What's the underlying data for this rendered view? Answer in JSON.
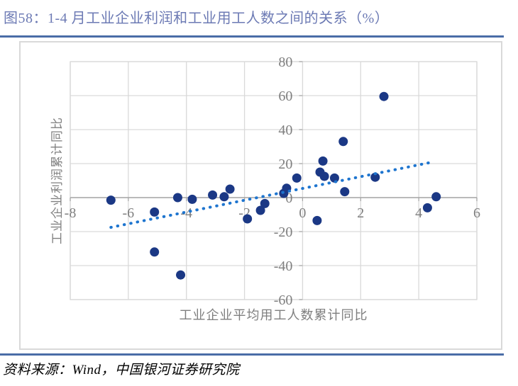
{
  "figure": {
    "title": "图58：1-4 月工业企业利润和工业用工人数之间的关系（%）",
    "source": "资料来源：Wind，中国银河证券研究院"
  },
  "colors": {
    "title_text": "#6c7ab4",
    "rule": "#4a6da7",
    "marker": "#1b3885",
    "trend": "#1e75cf",
    "grid": "#d9d9d9",
    "zero_axis": "#a6a6a6",
    "tick_label": "#7f7f7f",
    "axis_title": "#7f7f7f",
    "frame_border": "#d9d9d9"
  },
  "chart_data": {
    "type": "scatter",
    "title": "",
    "xlabel": "工业企业平均用工人数累计同比",
    "ylabel": "工业企业利润累计同比",
    "xlim": [
      -8,
      6
    ],
    "ylim": [
      -60,
      80
    ],
    "x_ticks": [
      -8,
      -6,
      -4,
      -2,
      0,
      2,
      4,
      6
    ],
    "y_ticks": [
      80,
      60,
      40,
      20,
      0,
      -20,
      -40,
      -60
    ],
    "grid": true,
    "legend_position": "none",
    "points": [
      [
        -6.6,
        -1.5
      ],
      [
        -5.1,
        -8.5
      ],
      [
        -5.1,
        -32
      ],
      [
        -4.3,
        0
      ],
      [
        -4.2,
        -45.5
      ],
      [
        -3.8,
        -1
      ],
      [
        -3.1,
        1.5
      ],
      [
        -2.7,
        0.5
      ],
      [
        -2.5,
        5
      ],
      [
        -1.9,
        -12.5
      ],
      [
        -1.45,
        -7.5
      ],
      [
        -1.3,
        -3.5
      ],
      [
        -0.65,
        2.5
      ],
      [
        -0.55,
        5.5
      ],
      [
        -0.2,
        11.5
      ],
      [
        0.5,
        -13.5
      ],
      [
        0.6,
        15
      ],
      [
        0.7,
        21.5
      ],
      [
        0.75,
        12.5
      ],
      [
        1.1,
        11.5
      ],
      [
        1.4,
        33
      ],
      [
        1.45,
        3.5
      ],
      [
        2.5,
        12
      ],
      [
        2.8,
        59.5
      ],
      [
        4.3,
        -6
      ],
      [
        4.6,
        0.5
      ]
    ],
    "trendline": {
      "style": "dotted",
      "x1": -6.6,
      "y1": -17.5,
      "x2": 4.5,
      "y2": 21
    }
  }
}
